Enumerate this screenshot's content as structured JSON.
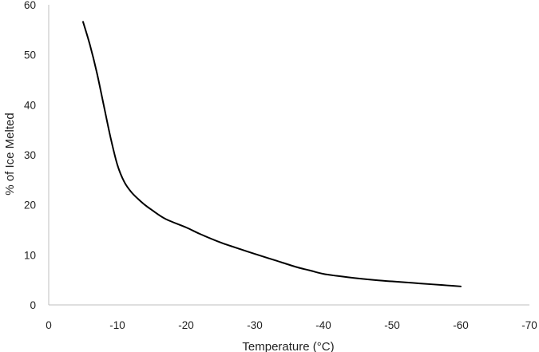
{
  "chart_data": {
    "type": "line",
    "xlabel": "Temperature (°C)",
    "ylabel": "% of Ice Melted",
    "xlim": [
      0,
      -70
    ],
    "ylim": [
      0,
      60
    ],
    "xticks": [
      "0",
      "-10",
      "-20",
      "-30",
      "-40",
      "-50",
      "-60",
      "-70"
    ],
    "yticks": [
      "0",
      "10",
      "20",
      "30",
      "40",
      "50",
      "60"
    ],
    "grid": false,
    "legend": "none",
    "series": [
      {
        "x": [
          -5,
          -6,
          -7,
          -8,
          -9,
          -10,
          -11,
          -12,
          -13,
          -14,
          -15,
          -17,
          -20,
          -22,
          -25,
          -28,
          -30,
          -33,
          -36,
          -38,
          -40,
          -42,
          -45,
          -48,
          -50,
          -53,
          -56,
          -58,
          -60
        ],
        "y": [
          56.6,
          52,
          46.5,
          40,
          33.5,
          28,
          24.6,
          22.6,
          21.2,
          20,
          19,
          17.2,
          15.5,
          14.2,
          12.5,
          11.1,
          10.2,
          8.9,
          7.6,
          6.9,
          6.2,
          5.8,
          5.3,
          4.9,
          4.7,
          4.4,
          4.1,
          3.9,
          3.7
        ],
        "color": "#000000"
      }
    ]
  }
}
